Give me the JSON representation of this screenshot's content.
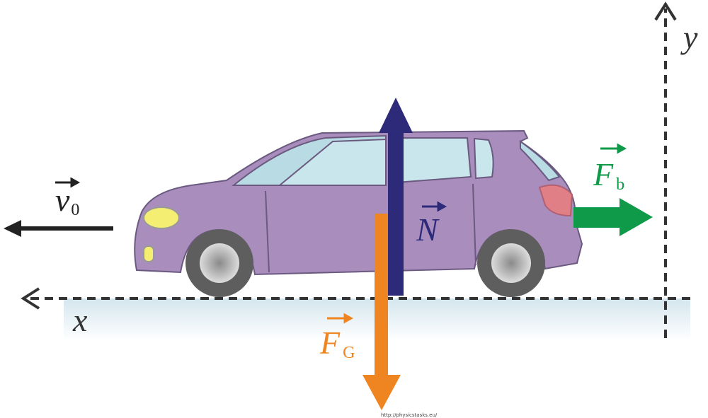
{
  "axes": {
    "x": "x",
    "y": "y"
  },
  "vectors": [
    {
      "symbol": "v",
      "subscript": "0"
    },
    {
      "symbol": "N"
    },
    {
      "symbol": "F",
      "subscript": "b"
    },
    {
      "symbol": "F",
      "subscript": "G"
    }
  ],
  "source": "http://physicstasks.eu/"
}
